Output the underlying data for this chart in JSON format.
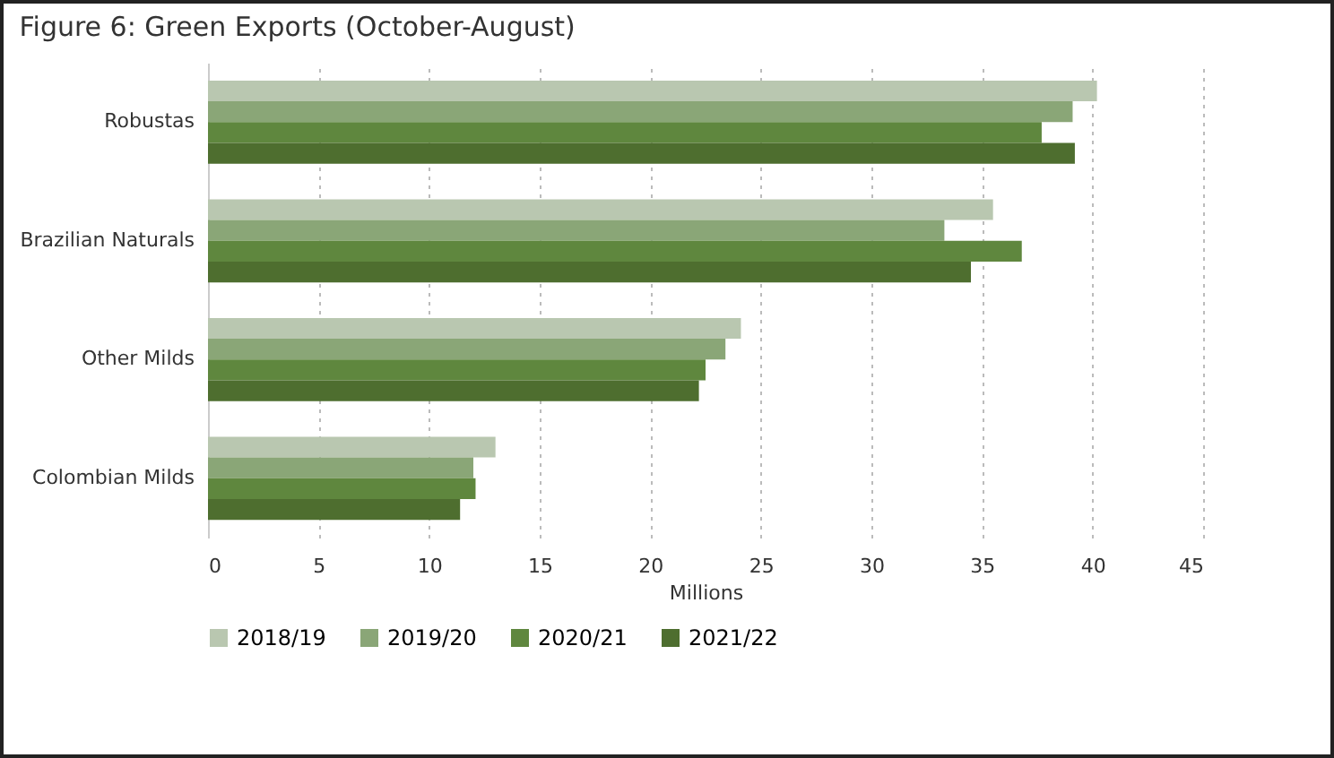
{
  "chart_data": {
    "type": "bar",
    "orientation": "horizontal",
    "title": "Figure 6: Green Exports (October-August)",
    "xlabel": "Millions",
    "categories": [
      "Robustas",
      "Brazilian Naturals",
      "Other Milds",
      "Colombian Milds"
    ],
    "series": [
      {
        "name": "2018/19",
        "color": "#b9c7b0",
        "values": [
          40.2,
          35.5,
          24.1,
          13.0
        ]
      },
      {
        "name": "2019/20",
        "color": "#8aa677",
        "values": [
          39.1,
          33.3,
          23.4,
          12.0
        ]
      },
      {
        "name": "2020/21",
        "color": "#5f873e",
        "values": [
          37.7,
          36.8,
          22.5,
          12.1
        ]
      },
      {
        "name": "2021/22",
        "color": "#4e6e2f",
        "values": [
          39.2,
          34.5,
          22.2,
          11.4
        ]
      }
    ],
    "xlim": [
      0,
      45
    ],
    "xticks": [
      0,
      5,
      10,
      15,
      20,
      25,
      30,
      35,
      40,
      45
    ],
    "grid": "x",
    "legend": "bottom"
  }
}
